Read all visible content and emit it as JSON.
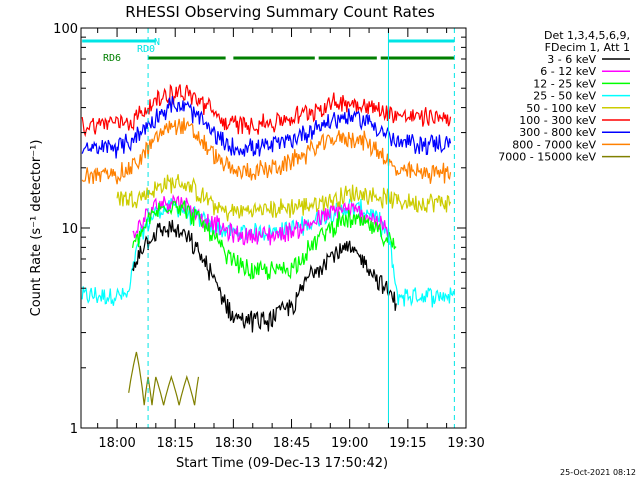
{
  "colors": {
    "background": "#ffffff",
    "axis": "#000000",
    "flag_cyan": "#00e5e5",
    "flag_green": "#007f00"
  },
  "chart_data": {
    "type": "line",
    "title": "RHESSI Observing Summary Count Rates",
    "xlabel": "Start Time (09-Dec-13 17:50:42)",
    "ylabel": "Count Rate (s⁻¹ detector⁻¹)",
    "ylim": [
      1,
      100
    ],
    "yscale": "log",
    "y_ticks": [
      "1",
      "10",
      "100"
    ],
    "x_range": [
      "17:50:42",
      "19:30:00"
    ],
    "x_ticks": [
      "18:00",
      "18:15",
      "18:30",
      "18:45",
      "19:00",
      "19:15",
      "19:30"
    ],
    "legend_header": [
      "Det 1,3,4,5,6,9,",
      "FDecim 1, Att 1"
    ],
    "legend_placement": "top-right outside",
    "timestamp": "25-Oct-2021 08:12",
    "flags": [
      {
        "name": "N",
        "color": "#00e5e5",
        "intervals": [
          [
            "17:51",
            "18:10"
          ],
          [
            "19:10",
            "19:27"
          ]
        ]
      },
      {
        "name": "RD0",
        "color": "#00e5e5",
        "intervals": []
      },
      {
        "name": "RD6",
        "color": "#007f00",
        "intervals": [
          [
            "18:08",
            "18:28"
          ],
          [
            "18:30",
            "18:51"
          ],
          [
            "18:52",
            "19:07"
          ],
          [
            "19:08",
            "19:27"
          ]
        ]
      }
    ],
    "markers": {
      "cyan_dashed": [
        "18:08",
        "19:27"
      ],
      "cyan_solid": [
        "19:10"
      ]
    },
    "series": [
      {
        "name": "3 - 6 keV",
        "color": "#000000",
        "points": [
          [
            "18:04",
            6
          ],
          [
            "18:06",
            8
          ],
          [
            "18:10",
            9.5
          ],
          [
            "18:14",
            10
          ],
          [
            "18:18",
            9
          ],
          [
            "18:22",
            7
          ],
          [
            "18:26",
            5
          ],
          [
            "18:30",
            3.6
          ],
          [
            "18:38",
            3.4
          ],
          [
            "18:46",
            4.2
          ],
          [
            "18:50",
            6
          ],
          [
            "18:56",
            7.5
          ],
          [
            "19:00",
            7.8
          ],
          [
            "19:04",
            6.8
          ],
          [
            "19:07",
            5.6
          ],
          [
            "19:10",
            4.8
          ],
          [
            "19:12",
            4.2
          ]
        ]
      },
      {
        "name": "6 - 12 keV",
        "color": "#ff00ff",
        "points": [
          [
            "18:04",
            9
          ],
          [
            "18:10",
            13
          ],
          [
            "18:15",
            14
          ],
          [
            "18:20",
            12
          ],
          [
            "18:25",
            10.5
          ],
          [
            "18:30",
            9.2
          ],
          [
            "18:40",
            9.2
          ],
          [
            "18:46",
            9.8
          ],
          [
            "18:52",
            11
          ],
          [
            "18:58",
            12.5
          ],
          [
            "19:02",
            12
          ],
          [
            "19:07",
            11
          ],
          [
            "19:10",
            9.5
          ]
        ]
      },
      {
        "name": "12 - 25 keV",
        "color": "#00ff00",
        "points": [
          [
            "18:04",
            8
          ],
          [
            "18:10",
            12
          ],
          [
            "18:15",
            13.5
          ],
          [
            "18:20",
            11.5
          ],
          [
            "18:25",
            9
          ],
          [
            "18:28",
            7.2
          ],
          [
            "18:35",
            6
          ],
          [
            "18:45",
            6.3
          ],
          [
            "18:50",
            8
          ],
          [
            "18:56",
            10.5
          ],
          [
            "19:00",
            11
          ],
          [
            "19:04",
            10.5
          ],
          [
            "19:08",
            9.5
          ],
          [
            "19:12",
            8
          ]
        ]
      },
      {
        "name": "25 - 50 keV",
        "color": "#00ffff",
        "points": [
          [
            "17:51",
            4.6
          ],
          [
            "17:58",
            4.6
          ],
          [
            "18:03",
            4.6
          ],
          [
            "18:06",
            9
          ],
          [
            "18:10",
            12
          ],
          [
            "18:15",
            13
          ],
          [
            "18:20",
            11.5
          ],
          [
            "18:25",
            10
          ],
          [
            "18:30",
            9.5
          ],
          [
            "18:40",
            9.6
          ],
          [
            "18:48",
            10.2
          ],
          [
            "18:55",
            12
          ],
          [
            "19:00",
            12.8
          ],
          [
            "19:05",
            12
          ],
          [
            "19:08",
            10.5
          ],
          [
            "19:10",
            9
          ],
          [
            "19:12",
            4.6
          ],
          [
            "19:27",
            4.6
          ]
        ]
      },
      {
        "name": "50 - 100 keV",
        "color": "#cccc00",
        "points": [
          [
            "18:00",
            14.5
          ],
          [
            "18:04",
            14
          ],
          [
            "18:08",
            15
          ],
          [
            "18:12",
            16.5
          ],
          [
            "18:16",
            17
          ],
          [
            "18:20",
            15.5
          ],
          [
            "18:25",
            13
          ],
          [
            "18:28",
            12
          ],
          [
            "18:32",
            12.2
          ],
          [
            "18:42",
            12.5
          ],
          [
            "18:48",
            13
          ],
          [
            "18:52",
            13.2
          ],
          [
            "18:58",
            14.5
          ],
          [
            "19:02",
            15
          ],
          [
            "19:06",
            14.5
          ],
          [
            "19:10",
            14
          ],
          [
            "19:14",
            13.5
          ],
          [
            "19:26",
            13.5
          ]
        ]
      },
      {
        "name": "100 - 300 keV",
        "color": "#ff0000",
        "points": [
          [
            "17:51",
            32
          ],
          [
            "17:58",
            34
          ],
          [
            "18:00",
            34
          ],
          [
            "18:04",
            34.5
          ],
          [
            "18:08",
            40
          ],
          [
            "18:12",
            46
          ],
          [
            "18:16",
            48
          ],
          [
            "18:20",
            45
          ],
          [
            "18:25",
            38
          ],
          [
            "18:28",
            33
          ],
          [
            "18:30",
            33
          ],
          [
            "18:40",
            33.5
          ],
          [
            "18:46",
            36
          ],
          [
            "18:52",
            40
          ],
          [
            "18:58",
            43
          ],
          [
            "19:02",
            42
          ],
          [
            "19:06",
            40
          ],
          [
            "19:10",
            38
          ],
          [
            "19:14",
            36
          ],
          [
            "19:26",
            36
          ]
        ]
      },
      {
        "name": "300 - 800 keV",
        "color": "#0000ff",
        "points": [
          [
            "17:51",
            24
          ],
          [
            "17:58",
            25.5
          ],
          [
            "18:02",
            26
          ],
          [
            "18:06",
            30
          ],
          [
            "18:10",
            36
          ],
          [
            "18:14",
            41
          ],
          [
            "18:18",
            40
          ],
          [
            "18:22",
            34
          ],
          [
            "18:26",
            28
          ],
          [
            "18:30",
            25
          ],
          [
            "18:38",
            25.5
          ],
          [
            "18:44",
            27
          ],
          [
            "18:50",
            31
          ],
          [
            "18:56",
            35
          ],
          [
            "19:00",
            36
          ],
          [
            "19:04",
            35
          ],
          [
            "19:08",
            31
          ],
          [
            "19:12",
            26.5
          ],
          [
            "19:26",
            26.5
          ]
        ]
      },
      {
        "name": "800 - 7000 keV",
        "color": "#ff8000",
        "points": [
          [
            "17:51",
            18
          ],
          [
            "17:58",
            18.5
          ],
          [
            "18:02",
            19
          ],
          [
            "18:06",
            22
          ],
          [
            "18:10",
            28
          ],
          [
            "18:14",
            33
          ],
          [
            "18:18",
            32
          ],
          [
            "18:22",
            27
          ],
          [
            "18:26",
            22
          ],
          [
            "18:30",
            19
          ],
          [
            "18:38",
            19.5
          ],
          [
            "18:44",
            21
          ],
          [
            "18:50",
            24.5
          ],
          [
            "18:56",
            28
          ],
          [
            "19:00",
            28.5
          ],
          [
            "19:04",
            27
          ],
          [
            "19:08",
            24
          ],
          [
            "19:12",
            19
          ],
          [
            "19:26",
            19
          ]
        ]
      },
      {
        "name": "7000 - 15000 keV",
        "color": "#808000",
        "points": [
          [
            "18:03",
            1.5
          ],
          [
            "18:05",
            2.4
          ],
          [
            "18:07",
            1.3
          ],
          [
            "18:08",
            1.8
          ],
          [
            "18:09",
            1.3
          ],
          [
            "18:10",
            1.8
          ],
          [
            "18:12",
            1.3
          ],
          [
            "18:14",
            1.8
          ],
          [
            "18:16",
            1.3
          ],
          [
            "18:18",
            1.8
          ],
          [
            "18:20",
            1.3
          ],
          [
            "18:21",
            1.8
          ]
        ]
      }
    ]
  }
}
